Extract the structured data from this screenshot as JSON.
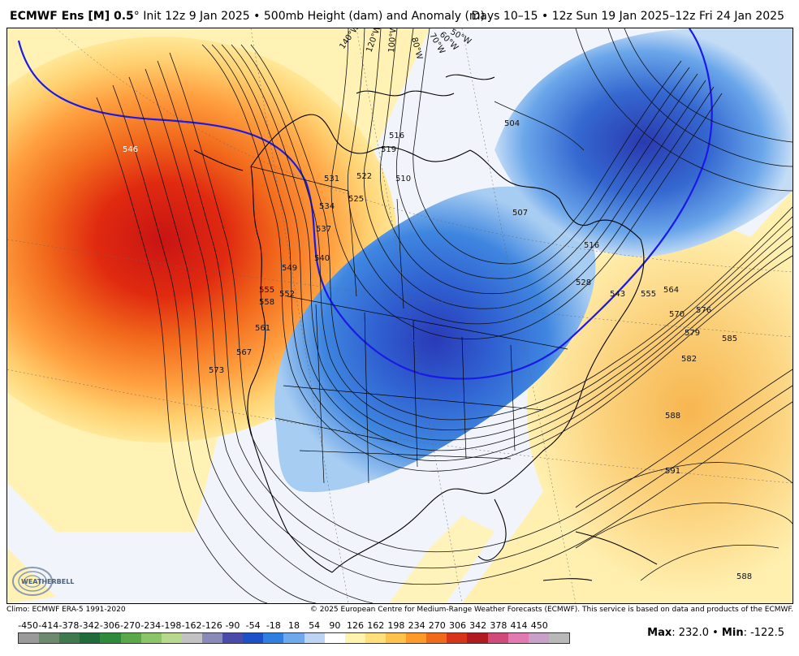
{
  "header": {
    "model": "ECMWF Ens [M] 0.5",
    "degree": "°",
    "init": "Init 12z 9 Jan 2025",
    "separator": "•",
    "field": "500mb Height (dam) and Anomaly (m)",
    "valid": "Days 10–15 • 12z Sun 19 Jan 2025–12z Fri 24 Jan 2025"
  },
  "footer": {
    "climo": "Climo: ECMWF ERA-5 1991-2020",
    "copyright": "© 2025 European Centre for Medium-Range Weather Forecasts (ECMWF). This service is based on data and products of the ECMWF."
  },
  "stats": {
    "max_label": "Max",
    "max_value": ": 232.0",
    "sep": " • ",
    "min_label": "Min",
    "min_value": ": -122.5"
  },
  "logo": {
    "text": "WEATHERBELL"
  },
  "colorbar": {
    "labels": [
      "-450",
      "-414",
      "-378",
      "-342",
      "-306",
      "-270",
      "-234",
      "-198",
      "-162",
      "-126",
      "-90",
      "-54",
      "-18",
      "18",
      "54",
      "90",
      "126",
      "162",
      "198",
      "234",
      "270",
      "306",
      "342",
      "378",
      "414",
      "450"
    ],
    "colors": [
      "#9a9a9a",
      "#6e8a6e",
      "#3f7a4e",
      "#1f6b3a",
      "#2f8a3a",
      "#5aa84a",
      "#8cc46a",
      "#b8d88e",
      "#c2c2c2",
      "#8a8ab8",
      "#4a4aa8",
      "#1e4fc8",
      "#2f7fe0",
      "#6fa8ec",
      "#bdd4f4",
      "#ffffff",
      "#fff3b0",
      "#ffe07a",
      "#ffc24a",
      "#ff9a2a",
      "#f06a1a",
      "#d8341a",
      "#b01a20",
      "#d04a7a",
      "#e07ab0",
      "#c8a0c8",
      "#b8b8b8"
    ]
  },
  "map_labels": {
    "contours": [
      "546",
      "531",
      "534",
      "537",
      "540",
      "549",
      "552",
      "555",
      "558",
      "561",
      "567",
      "573",
      "525",
      "522",
      "519",
      "516",
      "510",
      "504",
      "507",
      "516",
      "528",
      "543",
      "555",
      "564",
      "570",
      "576",
      "579",
      "582",
      "585",
      "588",
      "591",
      "588"
    ],
    "longitudes": [
      "140°W",
      "120°W",
      "100°W",
      "80°W",
      "70°W",
      "60°W",
      "50°W"
    ]
  }
}
